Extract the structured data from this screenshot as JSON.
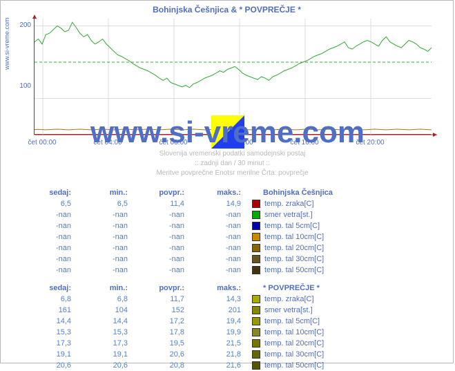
{
  "side_url": "www.si-vreme.com",
  "watermark": "www.si-vreme.com",
  "chart": {
    "title": "Bohinjska Češnjica & * POVPREČJE *",
    "type": "line",
    "ylim": [
      50,
      210
    ],
    "yticks": [
      100,
      200
    ],
    "xticks": [
      "čet 00:00",
      "čet 04:00",
      "čet 08:00",
      "čet 12:00",
      "čet 16:00",
      "čet 20:00"
    ],
    "grid_color": "#dddddd",
    "mean_line": {
      "value": 150,
      "color": "#33aa33",
      "dash": "4,3"
    },
    "xaxis_color": "#aa2222",
    "series_main": {
      "color": "#33aa33",
      "points": [
        178,
        182,
        175,
        188,
        190,
        195,
        200,
        197,
        192,
        194,
        205,
        198,
        190,
        185,
        188,
        180,
        175,
        178,
        182,
        175,
        170,
        165,
        160,
        158,
        155,
        152,
        148,
        145,
        142,
        140,
        138,
        135,
        132,
        128,
        125,
        128,
        122,
        120,
        118,
        116,
        118,
        115,
        120,
        122,
        125,
        128,
        130,
        132,
        135,
        138,
        136,
        140,
        142,
        144,
        140,
        135,
        132,
        130,
        128,
        126,
        130,
        128,
        125,
        130,
        132,
        135,
        138,
        140,
        142,
        145,
        148,
        150,
        152,
        155,
        158,
        160,
        162,
        165,
        168,
        170,
        172,
        175,
        178,
        170,
        168,
        172,
        175,
        178,
        180,
        178,
        175,
        172,
        180,
        185,
        178,
        175,
        172,
        170,
        175,
        180,
        178,
        175,
        170,
        168,
        165,
        170
      ]
    },
    "series_low": {
      "color": "#aa7722",
      "points": [
        18,
        19,
        18,
        17,
        18,
        19,
        20,
        19,
        18,
        17,
        18,
        19,
        20,
        19,
        18,
        17,
        18,
        19,
        20,
        19,
        18,
        17,
        18,
        19,
        20,
        19,
        18,
        17,
        18,
        19,
        20,
        19,
        18,
        17,
        18,
        19,
        20,
        19,
        18,
        17,
        18,
        19,
        20,
        19,
        18,
        17,
        18,
        19,
        20,
        19,
        18,
        17,
        18,
        19,
        20,
        19,
        18,
        17,
        18,
        19,
        20,
        19,
        18,
        17,
        18,
        19,
        20,
        19,
        18,
        17,
        18,
        19,
        20,
        19,
        18,
        17,
        18,
        19,
        20,
        19,
        18,
        17,
        18,
        19,
        20,
        19,
        18,
        17,
        18,
        19,
        20,
        19,
        18,
        17,
        18,
        19,
        20,
        19,
        18,
        17,
        18,
        19,
        20,
        19,
        18,
        17
      ]
    }
  },
  "subtext1": "Slovenija   vremenski  podatki  samodejnski  postaj",
  "subtext2": "::  zadnji dan  /  30 minut  ::",
  "subtext3": "Meritve povprečne  Enotsr merilne  Črta: povprečje",
  "table1": {
    "title": "Bohinjska Češnjica",
    "headers": [
      "sedaj:",
      "min.:",
      "povpr.:",
      "maks.:"
    ],
    "rows": [
      {
        "vals": [
          "6,5",
          "6,5",
          "11,4",
          "14,9"
        ],
        "color": "#aa0000",
        "label": "temp. zraka[C]"
      },
      {
        "vals": [
          "-nan",
          "-nan",
          "-nan",
          "-nan"
        ],
        "color": "#00aa00",
        "label": "smer vetra[st.]"
      },
      {
        "vals": [
          "-nan",
          "-nan",
          "-nan",
          "-nan"
        ],
        "color": "#0000aa",
        "label": "temp. tal  5cm[C]"
      },
      {
        "vals": [
          "-nan",
          "-nan",
          "-nan",
          "-nan"
        ],
        "color": "#cc8800",
        "label": "temp. tal 10cm[C]"
      },
      {
        "vals": [
          "-nan",
          "-nan",
          "-nan",
          "-nan"
        ],
        "color": "#886600",
        "label": "temp. tal 20cm[C]"
      },
      {
        "vals": [
          "-nan",
          "-nan",
          "-nan",
          "-nan"
        ],
        "color": "#665522",
        "label": "temp. tal 30cm[C]"
      },
      {
        "vals": [
          "-nan",
          "-nan",
          "-nan",
          "-nan"
        ],
        "color": "#443311",
        "label": "temp. tal 50cm[C]"
      }
    ]
  },
  "table2": {
    "title": "* POVPREČJE *",
    "headers": [
      "sedaj:",
      "min.:",
      "povpr.:",
      "maks.:"
    ],
    "rows": [
      {
        "vals": [
          "6,8",
          "6,8",
          "11,7",
          "14,3"
        ],
        "color": "#aaaa00",
        "label": "temp. zraka[C]"
      },
      {
        "vals": [
          "161",
          "104",
          "152",
          "201"
        ],
        "color": "#888800",
        "label": "smer vetra[st.]"
      },
      {
        "vals": [
          "14,4",
          "14,4",
          "17,2",
          "19,4"
        ],
        "color": "#999900",
        "label": "temp. tal  5cm[C]"
      },
      {
        "vals": [
          "15,3",
          "15,3",
          "17,8",
          "19,9"
        ],
        "color": "#888822",
        "label": "temp. tal 10cm[C]"
      },
      {
        "vals": [
          "17,3",
          "17,3",
          "19,5",
          "21,5"
        ],
        "color": "#777700",
        "label": "temp. tal 20cm[C]"
      },
      {
        "vals": [
          "19,1",
          "19,1",
          "20,6",
          "21,8"
        ],
        "color": "#666600",
        "label": "temp. tal 30cm[C]"
      },
      {
        "vals": [
          "20,6",
          "20,6",
          "20,8",
          "21,6"
        ],
        "color": "#555500",
        "label": "temp. tal 50cm[C]"
      }
    ]
  }
}
